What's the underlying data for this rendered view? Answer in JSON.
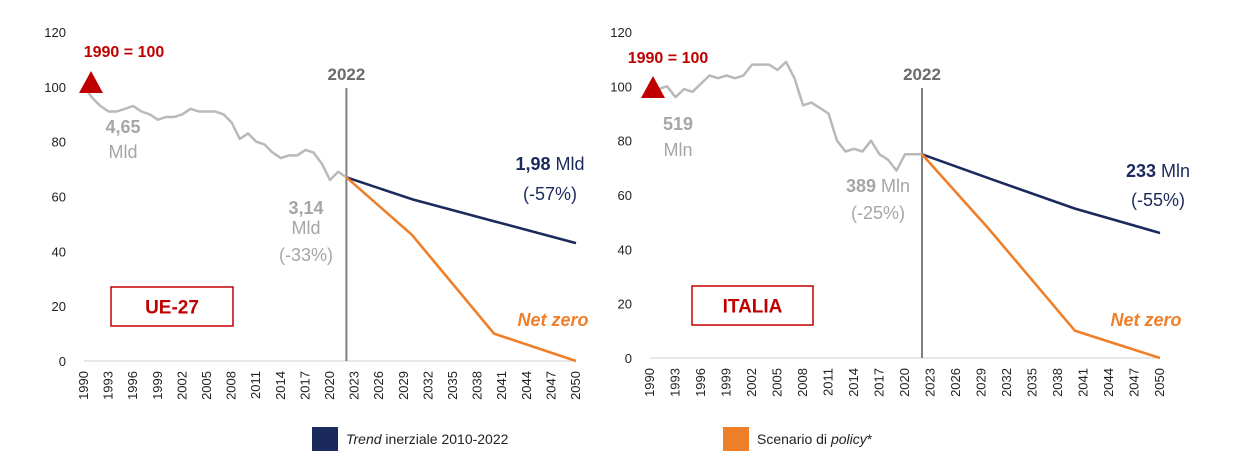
{
  "chart_data": [
    {
      "type": "line",
      "panel_label": "UE-27",
      "index_label": "1990 = 100",
      "year_marker": "2022",
      "ylim": [
        0,
        120
      ],
      "yticks": [
        "0",
        "20",
        "40",
        "60",
        "80",
        "100",
        "120"
      ],
      "xlim": [
        1990,
        2050
      ],
      "xticks": [
        "1990",
        "1993",
        "1996",
        "1999",
        "2002",
        "2005",
        "2008",
        "2011",
        "2014",
        "2017",
        "2020",
        "2023",
        "2026",
        "2029",
        "2032",
        "2035",
        "2038",
        "2041",
        "2044",
        "2047",
        "2050"
      ],
      "series": [
        {
          "x": [
            1990,
            1991,
            1992,
            1993,
            1994,
            1995,
            1996,
            1997,
            1998,
            1999,
            2000,
            2001,
            2002,
            2003,
            2004,
            2005,
            2006,
            2007,
            2008,
            2009,
            2010,
            2011,
            2012,
            2013,
            2014,
            2015,
            2016,
            2017,
            2018,
            2019,
            2020,
            2021,
            2022
          ],
          "y": [
            100,
            96,
            93,
            91,
            91,
            92,
            93,
            91,
            90,
            88,
            89,
            89,
            90,
            92,
            91,
            91,
            91,
            90,
            87,
            81,
            83,
            80,
            79,
            76,
            74,
            75,
            75,
            77,
            76,
            72,
            66,
            69,
            67
          ]
        },
        {
          "name": "Trend inerziale 2010-2022",
          "x": [
            2022,
            2030,
            2040,
            2050
          ],
          "y": [
            67,
            59,
            51,
            43
          ]
        },
        {
          "name": "Scenario di policy*",
          "x": [
            2022,
            2030,
            2040,
            2050
          ],
          "y": [
            67,
            46,
            10,
            0
          ]
        }
      ],
      "annotations": {
        "base_value": "4,65",
        "base_unit": "Mld",
        "current_value": "3,14",
        "current_unit": "Mld",
        "current_change": "(-33%)",
        "trend_value": "1,98",
        "trend_unit": " Mld",
        "trend_change": "(-57%)",
        "net_zero": "Net zero"
      }
    },
    {
      "type": "line",
      "panel_label": "ITALIA",
      "index_label": "1990 = 100",
      "year_marker": "2022",
      "ylim": [
        0,
        120
      ],
      "yticks": [
        "0",
        "20",
        "40",
        "60",
        "80",
        "100",
        "120"
      ],
      "xlim": [
        1990,
        2050
      ],
      "xticks": [
        "1990",
        "1993",
        "1996",
        "1999",
        "2002",
        "2005",
        "2008",
        "2011",
        "2014",
        "2017",
        "2020",
        "2023",
        "2026",
        "2029",
        "2032",
        "2035",
        "2038",
        "2041",
        "2044",
        "2047",
        "2050"
      ],
      "series": [
        {
          "x": [
            1990,
            1991,
            1992,
            1993,
            1994,
            1995,
            1996,
            1997,
            1998,
            1999,
            2000,
            2001,
            2002,
            2003,
            2004,
            2005,
            2006,
            2007,
            2008,
            2009,
            2010,
            2011,
            2012,
            2013,
            2014,
            2015,
            2016,
            2017,
            2018,
            2019,
            2020,
            2021,
            2022
          ],
          "y": [
            100,
            99,
            100,
            96,
            99,
            98,
            101,
            104,
            103,
            104,
            103,
            104,
            108,
            108,
            108,
            106,
            109,
            103,
            93,
            94,
            92,
            90,
            80,
            76,
            77,
            76,
            80,
            75,
            73,
            69,
            75,
            75,
            75
          ]
        },
        {
          "name": "Trend inerziale 2010-2022",
          "x": [
            2022,
            2030,
            2040,
            2050
          ],
          "y": [
            75,
            66,
            55,
            46
          ]
        },
        {
          "name": "Scenario di policy*",
          "x": [
            2022,
            2030,
            2040,
            2050
          ],
          "y": [
            75,
            47,
            10,
            0
          ]
        }
      ],
      "annotations": {
        "base_value": "519",
        "base_unit": "Mln",
        "current_value": "389",
        "current_unit": " Mln",
        "current_change": "(-25%)",
        "trend_value": "233",
        "trend_unit": " Mln",
        "trend_change": "(-55%)",
        "net_zero": "Net zero"
      }
    }
  ],
  "legend": [
    {
      "italic_part": "Trend",
      "rest": " inerziale 2010-2022",
      "color": "#1b2a5c"
    },
    {
      "plain_part": "Scenario di ",
      "italic_part": "policy",
      "suffix": "*",
      "color": "#f07f2a"
    }
  ],
  "colors": {
    "history": "#b9b9b9",
    "trend": "#1b2a5c",
    "policy": "#f07f2a",
    "accent": "#c00000",
    "marker": "#808080"
  }
}
